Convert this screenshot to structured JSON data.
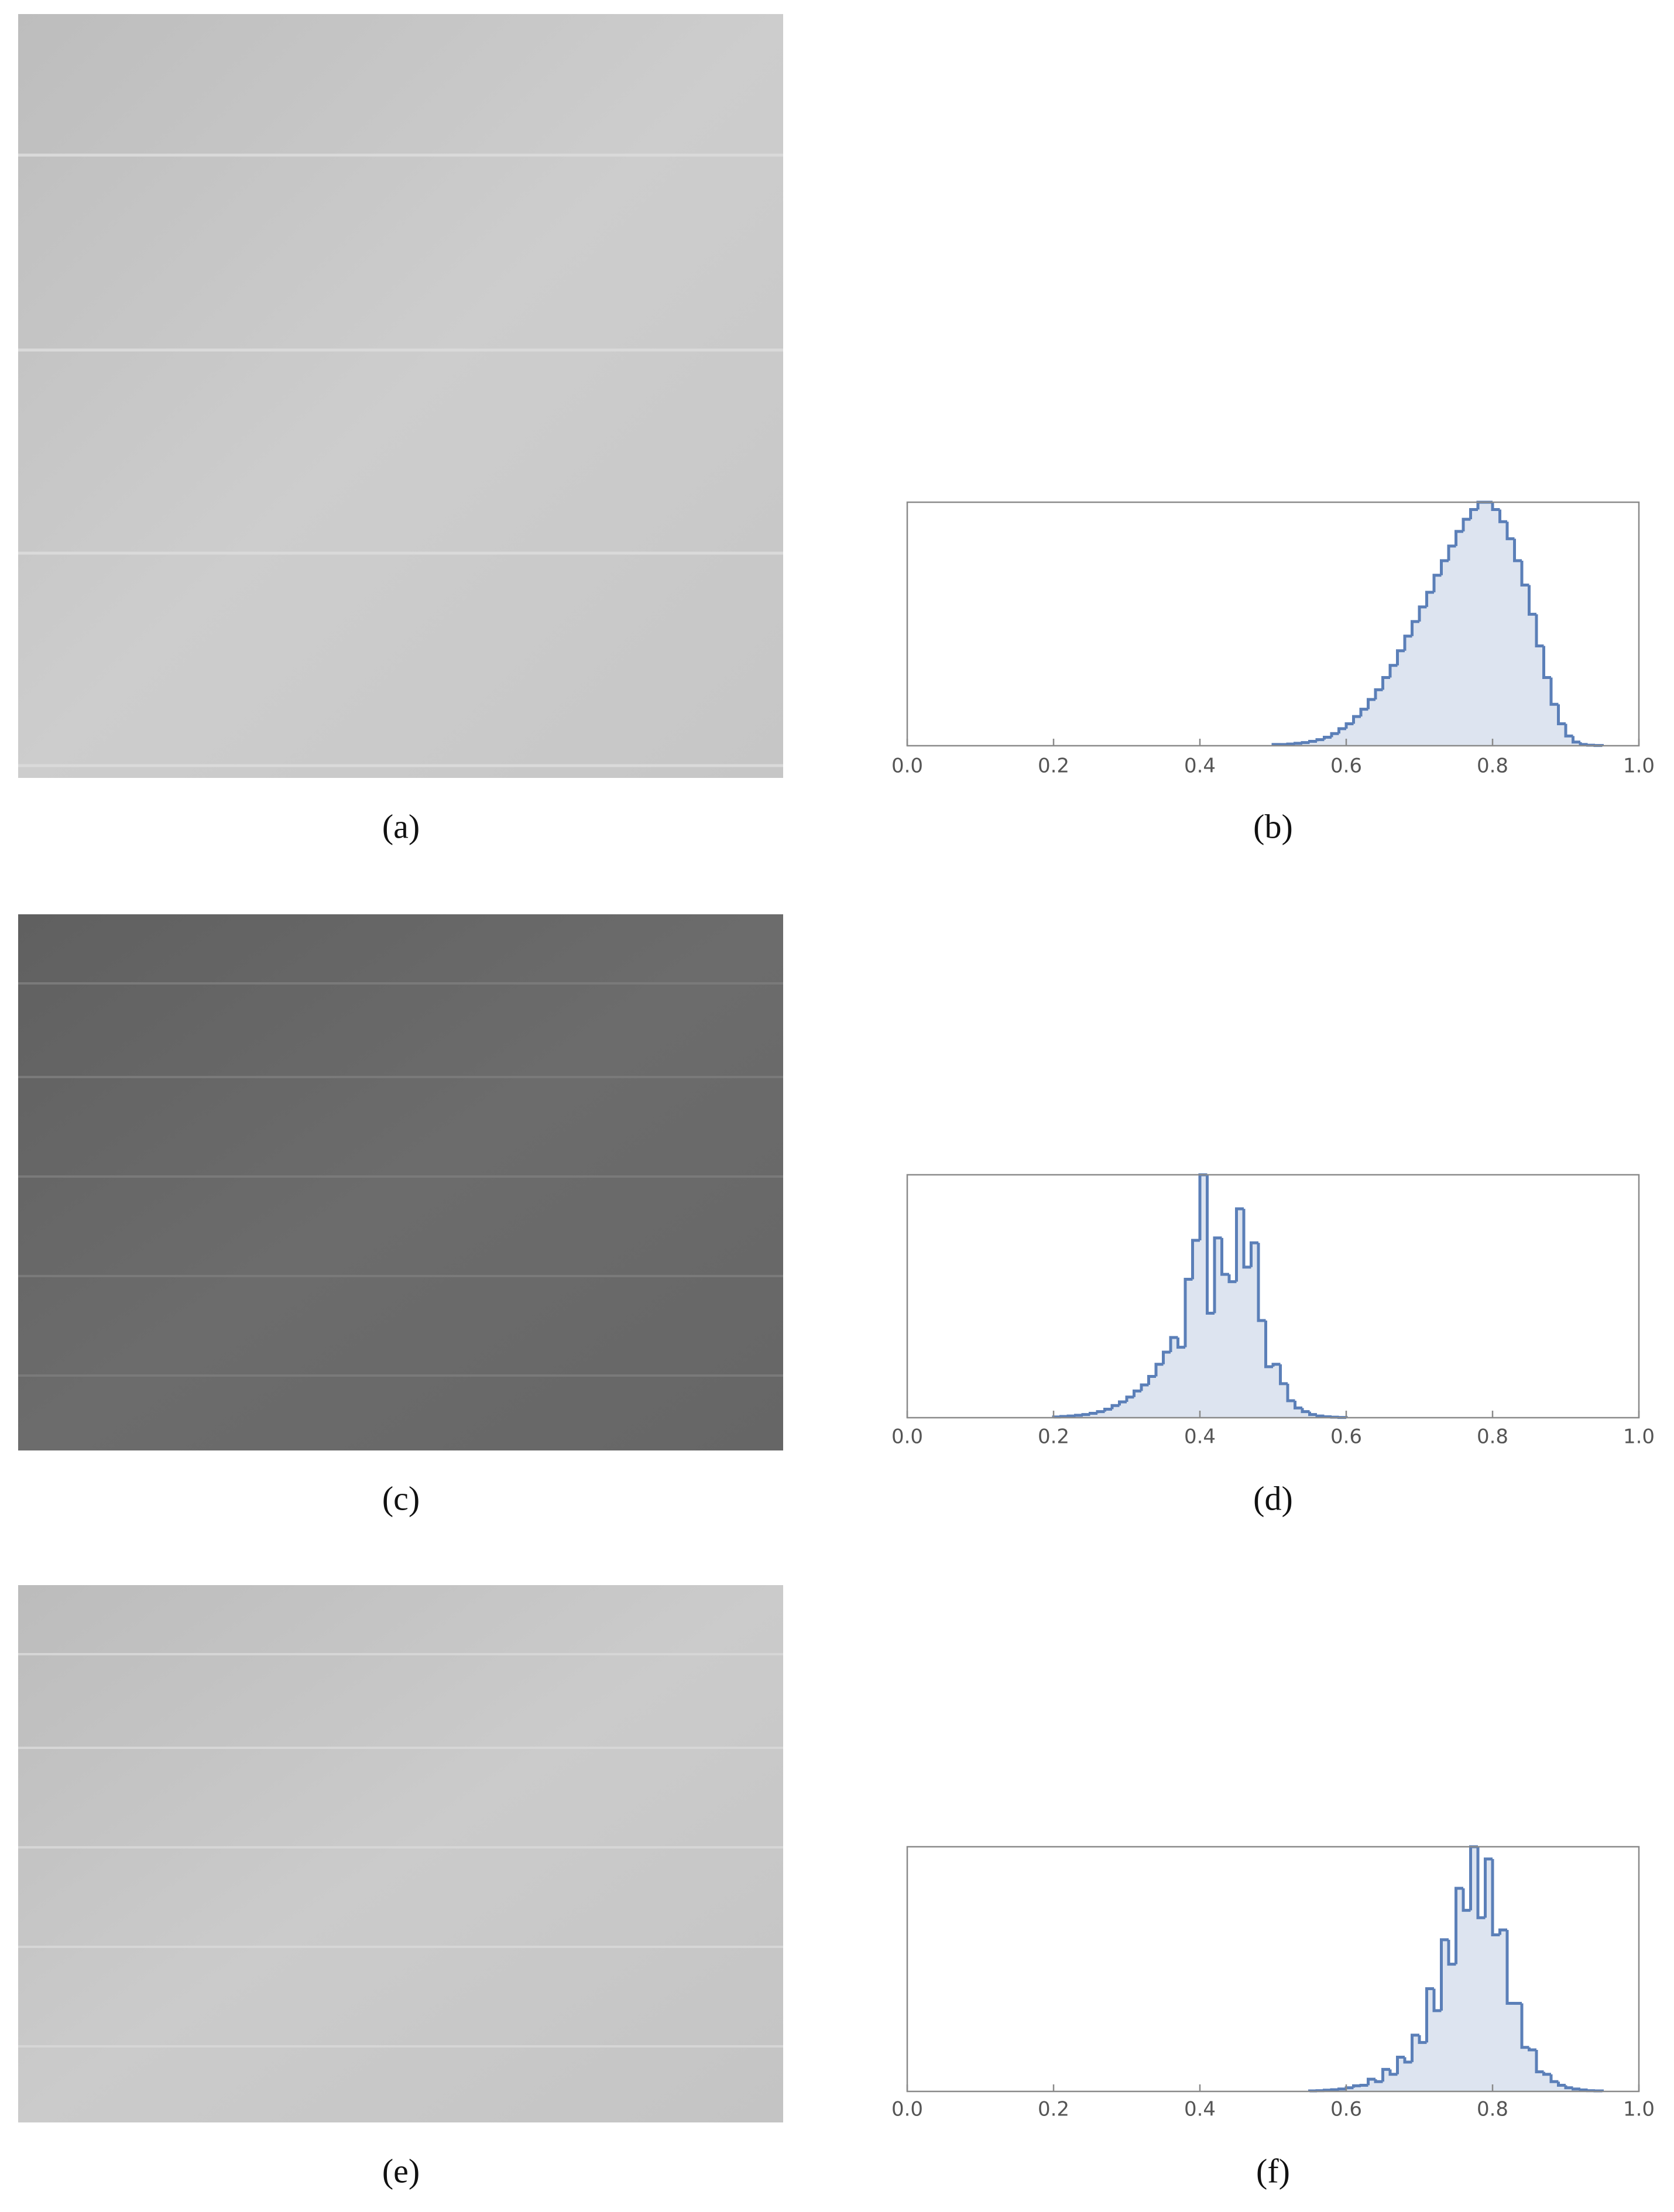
{
  "image_captions": [
    "(a)",
    "(c)",
    "(e)"
  ],
  "chart_data": [
    {
      "type": "histogram",
      "caption": "(b)",
      "color": "#5b7fb8",
      "fill": "#dde4f0",
      "xlim": [
        0,
        1
      ],
      "ylim": [
        0,
        100
      ],
      "xticks": [
        {
          "value": 0,
          "label": "0.0"
        },
        0.2,
        0.4,
        0.6,
        0.8,
        {
          "value": 1,
          "label": "1.0"
        }
      ],
      "bins": [
        0.5,
        0.51,
        0.52,
        0.53,
        0.54,
        0.55,
        0.56,
        0.57,
        0.58,
        0.59,
        0.6,
        0.61,
        0.62,
        0.63,
        0.64,
        0.65,
        0.66,
        0.67,
        0.68,
        0.69,
        0.7,
        0.71,
        0.72,
        0.73,
        0.74,
        0.75,
        0.76,
        0.77,
        0.78,
        0.79,
        0.8,
        0.81,
        0.82,
        0.83,
        0.84,
        0.85,
        0.86,
        0.87,
        0.88,
        0.89,
        0.9,
        0.91,
        0.92,
        0.93,
        0.94,
        0.95
      ],
      "values": [
        0.5,
        0.5,
        0.7,
        1,
        1.3,
        1.8,
        2.5,
        3.5,
        5,
        7,
        9,
        12,
        15,
        19,
        23,
        28,
        33,
        39,
        45,
        51,
        57,
        63,
        70,
        76,
        82,
        88,
        93,
        97,
        100,
        100,
        97,
        92,
        85,
        76,
        66,
        54,
        41,
        28,
        17,
        9,
        4,
        1.5,
        0.5,
        0.2,
        0.1
      ]
    },
    {
      "type": "histogram",
      "caption": "(d)",
      "color": "#5b7fb8",
      "fill": "#dde4f0",
      "xlim": [
        0,
        1
      ],
      "ylim": [
        0,
        100
      ],
      "xticks": [
        {
          "value": 0,
          "label": "0.0"
        },
        0.2,
        0.4,
        0.6,
        0.8,
        {
          "value": 1,
          "label": "1.0"
        }
      ],
      "bins": [
        0.2,
        0.21,
        0.22,
        0.23,
        0.24,
        0.25,
        0.26,
        0.27,
        0.28,
        0.29,
        0.3,
        0.31,
        0.32,
        0.33,
        0.34,
        0.35,
        0.36,
        0.37,
        0.38,
        0.39,
        0.4,
        0.41,
        0.42,
        0.43,
        0.44,
        0.45,
        0.46,
        0.47,
        0.48,
        0.49,
        0.5,
        0.51,
        0.52,
        0.53,
        0.54,
        0.55,
        0.56,
        0.57,
        0.58,
        0.59,
        0.6
      ],
      "values": [
        0.3,
        0.5,
        0.7,
        1,
        1.3,
        1.8,
        2.5,
        3.5,
        5,
        6.5,
        8.5,
        11,
        13.5,
        17,
        22,
        27,
        33,
        29,
        57,
        73,
        100,
        43,
        74,
        59,
        56,
        86,
        62,
        72,
        40,
        21,
        22,
        14,
        7,
        4,
        2.5,
        1.3,
        0.7,
        0.4,
        0.2,
        0.1
      ]
    },
    {
      "type": "histogram",
      "caption": "(f)",
      "color": "#5b7fb8",
      "fill": "#dde4f0",
      "xlim": [
        0,
        1
      ],
      "ylim": [
        0,
        100
      ],
      "xticks": [
        {
          "value": 0,
          "label": "0.0"
        },
        0.2,
        0.4,
        0.6,
        0.8,
        {
          "value": 1,
          "label": "1.0"
        }
      ],
      "bins": [
        0.55,
        0.56,
        0.57,
        0.58,
        0.59,
        0.6,
        0.61,
        0.62,
        0.63,
        0.64,
        0.65,
        0.66,
        0.67,
        0.68,
        0.69,
        0.7,
        0.71,
        0.72,
        0.73,
        0.74,
        0.75,
        0.76,
        0.77,
        0.78,
        0.79,
        0.8,
        0.81,
        0.82,
        0.83,
        0.84,
        0.85,
        0.86,
        0.87,
        0.88,
        0.89,
        0.9,
        0.91,
        0.92,
        0.93,
        0.94,
        0.95
      ],
      "values": [
        0.2,
        0.3,
        0.5,
        0.7,
        1,
        1.5,
        2.3,
        2.5,
        5,
        4,
        9,
        7,
        14,
        12,
        23,
        20,
        42,
        33,
        62,
        52,
        83,
        74,
        100,
        71,
        95,
        64,
        66,
        36,
        36,
        18,
        17,
        8,
        7,
        4,
        2.5,
        1.5,
        1,
        0.6,
        0.3,
        0.2
      ]
    }
  ]
}
